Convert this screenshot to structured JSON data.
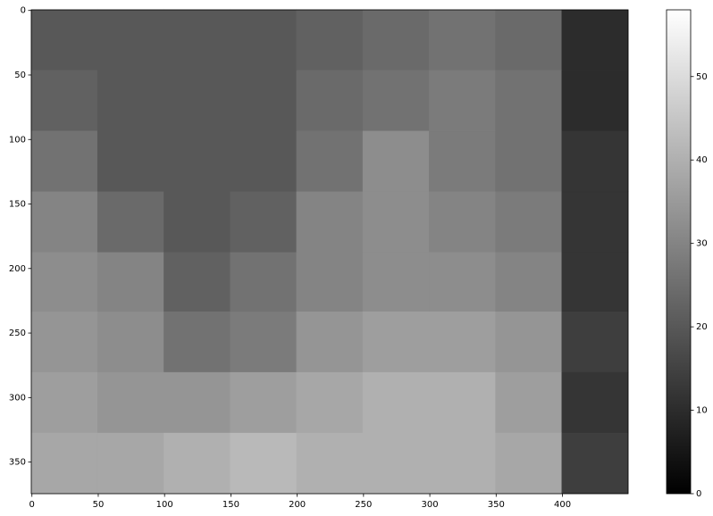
{
  "chart_data": {
    "type": "heatmap",
    "cmap": "gray",
    "x_edges": [
      0,
      50,
      100,
      150,
      200,
      250,
      300,
      350,
      400,
      450
    ],
    "y_edges": [
      0,
      47,
      94,
      141,
      188,
      234,
      281,
      328,
      375
    ],
    "z": [
      [
        20,
        20,
        20,
        20,
        22,
        24,
        26,
        24,
        10
      ],
      [
        22,
        20,
        20,
        20,
        24,
        26,
        28,
        26,
        10
      ],
      [
        26,
        20,
        20,
        20,
        26,
        32,
        28,
        26,
        12
      ],
      [
        30,
        24,
        20,
        22,
        30,
        32,
        30,
        28,
        12
      ],
      [
        32,
        30,
        22,
        26,
        30,
        32,
        32,
        30,
        12
      ],
      [
        34,
        32,
        26,
        28,
        34,
        36,
        36,
        34,
        14
      ],
      [
        36,
        34,
        34,
        36,
        38,
        40,
        40,
        36,
        12
      ],
      [
        38,
        38,
        40,
        42,
        40,
        40,
        40,
        38,
        14
      ]
    ],
    "xlim": [
      -0.5,
      449.5
    ],
    "ylim": [
      374.5,
      -0.5
    ],
    "xticks": [
      0,
      50,
      100,
      150,
      200,
      250,
      300,
      350,
      400
    ],
    "yticks": [
      0,
      50,
      100,
      150,
      200,
      250,
      300,
      350
    ],
    "clim": [
      0,
      58
    ],
    "cticks": [
      0,
      10,
      20,
      30,
      40,
      50
    ]
  }
}
